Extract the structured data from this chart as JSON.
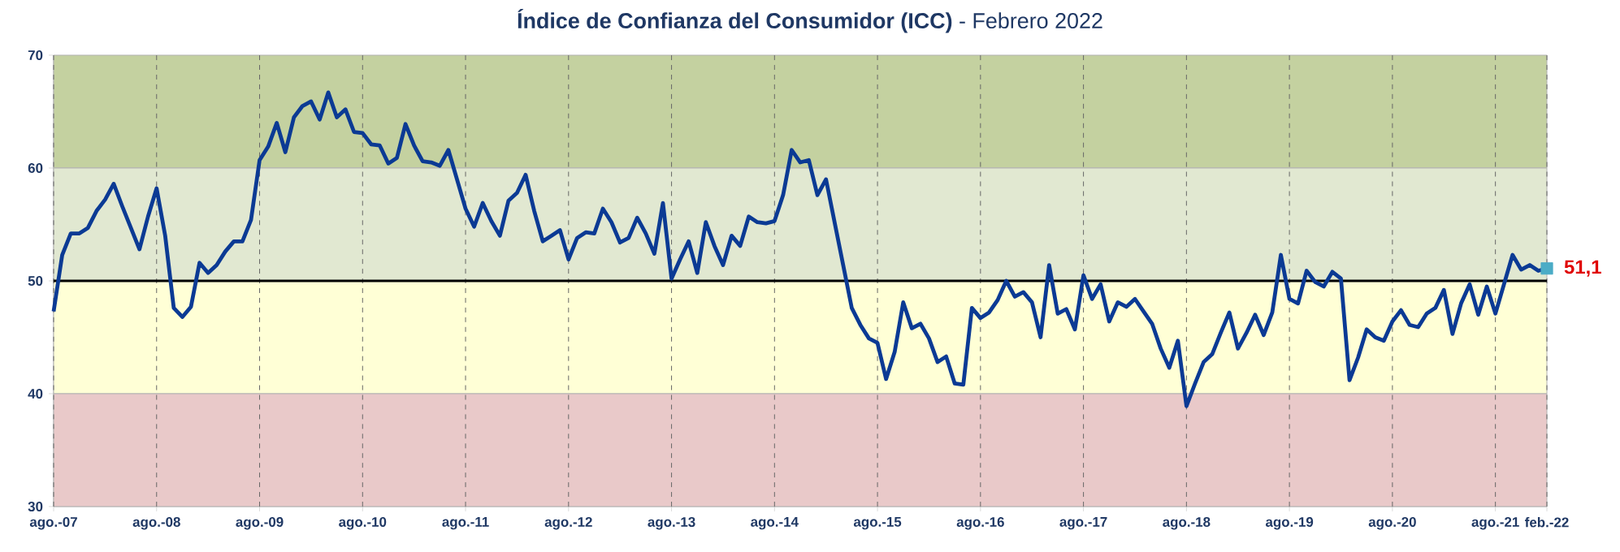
{
  "chart_data": {
    "type": "line",
    "title": "**Índice de Confianza del Consumidor (ICC)**  - Febrero 2022",
    "xlim": [
      "2007-08",
      "2022-02"
    ],
    "ylim": [
      30,
      70
    ],
    "xticks": [
      {
        "value": "2007-08",
        "label": "ago.-07"
      },
      {
        "value": "2008-08",
        "label": "ago.-08"
      },
      {
        "value": "2009-08",
        "label": "ago.-09"
      },
      {
        "value": "2010-08",
        "label": "ago.-10"
      },
      {
        "value": "2011-08",
        "label": "ago.-11"
      },
      {
        "value": "2012-08",
        "label": "ago.-12"
      },
      {
        "value": "2013-08",
        "label": "ago.-13"
      },
      {
        "value": "2014-08",
        "label": "ago.-14"
      },
      {
        "value": "2015-08",
        "label": "ago.-15"
      },
      {
        "value": "2016-08",
        "label": "ago.-16"
      },
      {
        "value": "2017-08",
        "label": "ago.-17"
      },
      {
        "value": "2018-08",
        "label": "ago.-18"
      },
      {
        "value": "2019-08",
        "label": "ago.-19"
      },
      {
        "value": "2020-08",
        "label": "ago.-20"
      },
      {
        "value": "2021-08",
        "label": "ago.-21"
      },
      {
        "value": "2022-02",
        "label": "feb.-22"
      }
    ],
    "yticks": [
      30,
      40,
      50,
      60,
      70
    ],
    "grid": "x",
    "bands": [
      {
        "axis": "y",
        "from": 60,
        "to": 70,
        "color": "#c4d1a0"
      },
      {
        "axis": "y",
        "from": 50,
        "to": 60,
        "color": "#e1e8d1"
      },
      {
        "axis": "y",
        "from": 40,
        "to": 50,
        "color": "#ffffd6"
      },
      {
        "axis": "y",
        "from": 30,
        "to": 40,
        "color": "#e9c9c9"
      }
    ],
    "ref_lines": [
      {
        "axis": "y",
        "value": 50,
        "color": "#000000"
      }
    ],
    "series": [
      {
        "color": "#0b3a94",
        "marker": "none",
        "x": [
          "2007-08",
          "2007-09",
          "2007-10",
          "2007-11",
          "2007-12",
          "2008-01",
          "2008-02",
          "2008-03",
          "2008-04",
          "2008-05",
          "2008-06",
          "2008-07",
          "2008-08",
          "2008-09",
          "2008-10",
          "2008-11",
          "2008-12",
          "2009-01",
          "2009-02",
          "2009-03",
          "2009-04",
          "2009-05",
          "2009-06",
          "2009-07",
          "2009-08",
          "2009-09",
          "2009-10",
          "2009-11",
          "2009-12",
          "2010-01",
          "2010-02",
          "2010-03",
          "2010-04",
          "2010-05",
          "2010-06",
          "2010-07",
          "2010-08",
          "2010-09",
          "2010-10",
          "2010-11",
          "2010-12",
          "2011-01",
          "2011-02",
          "2011-03",
          "2011-04",
          "2011-05",
          "2011-06",
          "2011-07",
          "2011-08",
          "2011-09",
          "2011-10",
          "2011-11",
          "2011-12",
          "2012-01",
          "2012-02",
          "2012-03",
          "2012-04",
          "2012-05",
          "2012-06",
          "2012-07",
          "2012-08",
          "2012-09",
          "2012-10",
          "2012-11",
          "2012-12",
          "2013-01",
          "2013-02",
          "2013-03",
          "2013-04",
          "2013-05",
          "2013-06",
          "2013-07",
          "2013-08",
          "2013-09",
          "2013-10",
          "2013-11",
          "2013-12",
          "2014-01",
          "2014-02",
          "2014-03",
          "2014-04",
          "2014-05",
          "2014-06",
          "2014-07",
          "2014-08",
          "2014-09",
          "2014-10",
          "2014-11",
          "2014-12",
          "2015-01",
          "2015-02",
          "2015-03",
          "2015-04",
          "2015-05",
          "2015-06",
          "2015-07",
          "2015-08",
          "2015-09",
          "2015-10",
          "2015-11",
          "2015-12",
          "2016-01",
          "2016-02",
          "2016-03",
          "2016-04",
          "2016-05",
          "2016-06",
          "2016-07",
          "2016-08",
          "2016-09",
          "2016-10",
          "2016-11",
          "2016-12",
          "2017-01",
          "2017-02",
          "2017-03",
          "2017-04",
          "2017-05",
          "2017-06",
          "2017-07",
          "2017-08",
          "2017-09",
          "2017-10",
          "2017-11",
          "2017-12",
          "2018-01",
          "2018-02",
          "2018-03",
          "2018-04",
          "2018-05",
          "2018-06",
          "2018-07",
          "2018-08",
          "2018-09",
          "2018-10",
          "2018-11",
          "2018-12",
          "2019-01",
          "2019-02",
          "2019-03",
          "2019-04",
          "2019-05",
          "2019-06",
          "2019-07",
          "2019-08",
          "2019-09",
          "2019-10",
          "2019-11",
          "2019-12",
          "2020-01",
          "2020-02",
          "2020-03",
          "2020-04",
          "2020-05",
          "2020-06",
          "2020-07",
          "2020-08",
          "2020-09",
          "2020-10",
          "2020-11",
          "2020-12",
          "2021-01",
          "2021-02",
          "2021-03",
          "2021-04",
          "2021-05",
          "2021-06",
          "2021-07",
          "2021-08",
          "2021-09",
          "2021-10",
          "2021-11",
          "2021-12",
          "2022-01",
          "2022-02"
        ],
        "values": [
          47.3,
          52.3,
          54.2,
          54.2,
          54.7,
          56.2,
          57.2,
          58.6,
          56.6,
          54.7,
          52.8,
          55.7,
          58.2,
          54.0,
          47.6,
          46.8,
          47.7,
          51.6,
          50.7,
          51.4,
          52.6,
          53.5,
          53.5,
          55.4,
          60.7,
          61.9,
          64.0,
          61.4,
          64.5,
          65.5,
          65.9,
          64.3,
          66.7,
          64.5,
          65.2,
          63.2,
          63.1,
          62.1,
          62.0,
          60.4,
          60.9,
          63.9,
          62.0,
          60.6,
          60.5,
          60.2,
          61.6,
          59.0,
          56.4,
          54.8,
          56.9,
          55.3,
          54.0,
          57.1,
          57.8,
          59.4,
          56.2,
          53.5,
          54.0,
          54.5,
          51.9,
          53.8,
          54.3,
          54.2,
          56.4,
          55.2,
          53.4,
          53.8,
          55.6,
          54.2,
          52.4,
          56.9,
          50.2,
          51.9,
          53.5,
          50.7,
          55.2,
          53.1,
          51.4,
          54.0,
          53.1,
          55.7,
          55.2,
          55.1,
          55.3,
          57.6,
          61.6,
          60.5,
          60.7,
          57.6,
          59.0,
          55.2,
          51.4,
          47.6,
          46.1,
          44.9,
          44.5,
          41.3,
          43.7,
          48.1,
          45.8,
          46.2,
          44.9,
          42.8,
          43.3,
          40.9,
          40.8,
          47.6,
          46.7,
          47.2,
          48.3,
          50.0,
          48.6,
          49.0,
          48.1,
          45.0,
          51.4,
          47.1,
          47.5,
          45.7,
          50.5,
          48.4,
          49.7,
          46.4,
          48.1,
          47.7,
          48.4,
          47.3,
          46.2,
          44.0,
          42.3,
          44.7,
          38.9,
          40.9,
          42.8,
          43.5,
          45.4,
          47.2,
          44.0,
          45.4,
          47.0,
          45.2,
          47.2,
          52.3,
          48.4,
          48.0,
          50.9,
          49.9,
          49.5,
          50.8,
          50.2,
          41.2,
          43.2,
          45.7,
          45.0,
          44.7,
          46.4,
          47.4,
          46.1,
          45.9,
          47.1,
          47.6,
          49.2,
          45.3,
          48.0,
          49.7,
          47.0,
          49.5,
          47.1,
          49.7,
          52.3,
          51.0,
          51.4,
          50.9,
          51.1
        ]
      },
      {
        "type": "scatter",
        "color": "#4bacc6",
        "marker": "square",
        "x": [
          "2022-02"
        ],
        "values": [
          51.1
        ],
        "value_labels": [
          "51,1"
        ]
      }
    ]
  }
}
